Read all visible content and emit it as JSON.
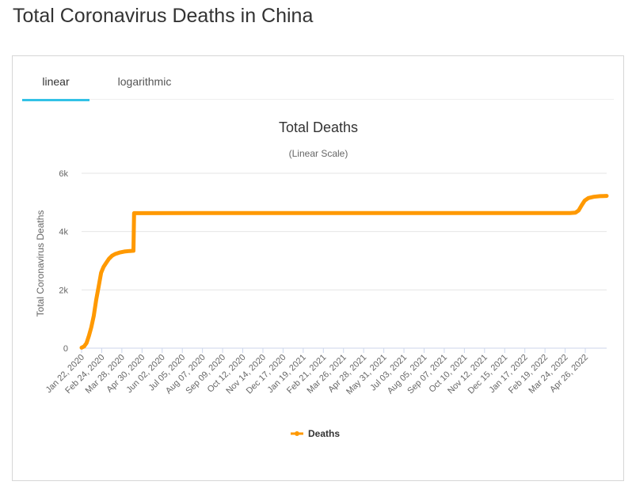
{
  "page": {
    "title": "Total Coronavirus Deaths in China"
  },
  "tabs": [
    {
      "label": "linear",
      "active": true
    },
    {
      "label": "logarithmic",
      "active": false
    }
  ],
  "colors": {
    "series": "#f90",
    "tab_accent": "#33c2e6",
    "grid": "#e6e6e6"
  },
  "chart_data": {
    "type": "line",
    "title": "Total Deaths",
    "subtitle": "(Linear Scale)",
    "ylabel": "Total Coronavirus Deaths",
    "xlabel": "",
    "x_range": [
      "2020-01-22",
      "2022-05-31"
    ],
    "ylim": [
      0,
      6000
    ],
    "yticks": [
      {
        "value": 0,
        "label": "0"
      },
      {
        "value": 2000,
        "label": "2k"
      },
      {
        "value": 4000,
        "label": "4k"
      },
      {
        "value": 6000,
        "label": "6k"
      }
    ],
    "xtick_labels": [
      {
        "date": "2020-01-22",
        "label": "Jan 22, 2020"
      },
      {
        "date": "2020-02-24",
        "label": "Feb 24, 2020"
      },
      {
        "date": "2020-03-28",
        "label": "Mar 28, 2020"
      },
      {
        "date": "2020-04-30",
        "label": "Apr 30, 2020"
      },
      {
        "date": "2020-06-02",
        "label": "Jun 02, 2020"
      },
      {
        "date": "2020-07-05",
        "label": "Jul 05, 2020"
      },
      {
        "date": "2020-08-07",
        "label": "Aug 07, 2020"
      },
      {
        "date": "2020-09-09",
        "label": "Sep 09, 2020"
      },
      {
        "date": "2020-10-12",
        "label": "Oct 12, 2020"
      },
      {
        "date": "2020-11-14",
        "label": "Nov 14, 2020"
      },
      {
        "date": "2020-12-17",
        "label": "Dec 17, 2020"
      },
      {
        "date": "2021-01-19",
        "label": "Jan 19, 2021"
      },
      {
        "date": "2021-02-21",
        "label": "Feb 21, 2021"
      },
      {
        "date": "2021-03-26",
        "label": "Mar 26, 2021"
      },
      {
        "date": "2021-04-28",
        "label": "Apr 28, 2021"
      },
      {
        "date": "2021-05-31",
        "label": "May 31, 2021"
      },
      {
        "date": "2021-07-03",
        "label": "Jul 03, 2021"
      },
      {
        "date": "2021-08-05",
        "label": "Aug 05, 2021"
      },
      {
        "date": "2021-09-07",
        "label": "Sep 07, 2021"
      },
      {
        "date": "2021-10-10",
        "label": "Oct 10, 2021"
      },
      {
        "date": "2021-11-12",
        "label": "Nov 12, 2021"
      },
      {
        "date": "2021-12-15",
        "label": "Dec 15, 2021"
      },
      {
        "date": "2022-01-17",
        "label": "Jan 17, 2022"
      },
      {
        "date": "2022-02-19",
        "label": "Feb 19, 2022"
      },
      {
        "date": "2022-03-24",
        "label": "Mar 24, 2022"
      },
      {
        "date": "2022-04-26",
        "label": "Apr 26, 2022"
      }
    ],
    "grid": true,
    "legend": {
      "position": "bottom-center"
    },
    "series": [
      {
        "name": "Deaths",
        "color": "#f90",
        "points": [
          [
            "2020-01-22",
            17
          ],
          [
            "2020-01-26",
            56
          ],
          [
            "2020-01-30",
            170
          ],
          [
            "2020-02-03",
            425
          ],
          [
            "2020-02-07",
            720
          ],
          [
            "2020-02-11",
            1110
          ],
          [
            "2020-02-15",
            1665
          ],
          [
            "2020-02-19",
            2120
          ],
          [
            "2020-02-23",
            2590
          ],
          [
            "2020-02-27",
            2790
          ],
          [
            "2020-03-02",
            2915
          ],
          [
            "2020-03-07",
            3070
          ],
          [
            "2020-03-12",
            3170
          ],
          [
            "2020-03-17",
            3230
          ],
          [
            "2020-03-24",
            3280
          ],
          [
            "2020-04-01",
            3315
          ],
          [
            "2020-04-10",
            3335
          ],
          [
            "2020-04-16",
            3342
          ],
          [
            "2020-04-17",
            4632
          ],
          [
            "2020-08-01",
            4634
          ],
          [
            "2021-01-01",
            4634
          ],
          [
            "2022-01-01",
            4636
          ],
          [
            "2022-04-01",
            4638
          ],
          [
            "2022-04-10",
            4650
          ],
          [
            "2022-04-15",
            4720
          ],
          [
            "2022-04-20",
            4900
          ],
          [
            "2022-04-25",
            5060
          ],
          [
            "2022-05-01",
            5150
          ],
          [
            "2022-05-10",
            5195
          ],
          [
            "2022-05-20",
            5215
          ],
          [
            "2022-05-31",
            5224
          ]
        ]
      }
    ]
  }
}
